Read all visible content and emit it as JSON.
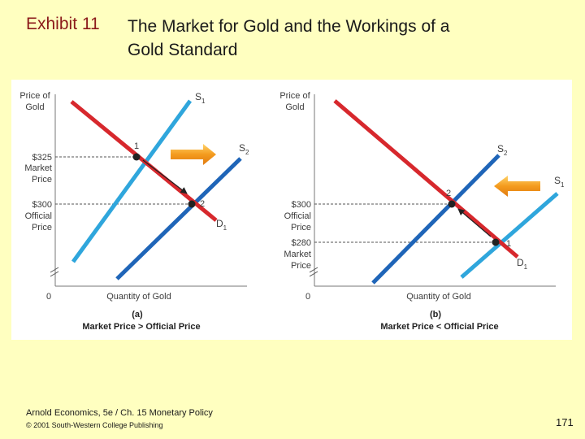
{
  "slide": {
    "exhibit_label": "Exhibit 11",
    "title": "The Market for Gold and the Workings of a Gold Standard",
    "footer_source": "Arnold Economics, 5e / Ch. 15 Monetary Policy",
    "footer_copyright": "© 2001 South-Western College Publishing",
    "page_number": "171"
  },
  "colors": {
    "demand": "#d7282d",
    "supply_light": "#2fa6dc",
    "supply_dark": "#1f65b8",
    "arrow_fill": "#f49b1e",
    "point": "#222222",
    "axis_text": "#3c3c3c"
  },
  "panels": [
    {
      "y_axis_label": [
        "Price of",
        "Gold"
      ],
      "x_axis_label": "Quantity of Gold",
      "origin": "0",
      "panel_letter": "(a)",
      "caption": "Market Price > Official Price",
      "s1": "S",
      "s1_sub": "1",
      "s2": "S",
      "s2_sub": "2",
      "d1": "D",
      "d1_sub": "1",
      "upper_price": [
        "$325",
        "Market",
        "Price"
      ],
      "lower_price": [
        "$300",
        "Official",
        "Price"
      ],
      "point1": "1",
      "point2": "2",
      "shift_arrow_icon": "arrow-right-icon"
    },
    {
      "y_axis_label": [
        "Price of",
        "Gold"
      ],
      "x_axis_label": "Quantity of Gold",
      "origin": "0",
      "panel_letter": "(b)",
      "caption": "Market Price < Official Price",
      "s1": "S",
      "s1_sub": "1",
      "s2": "S",
      "s2_sub": "2",
      "d1": "D",
      "d1_sub": "1",
      "upper_price": [
        "$300",
        "Official",
        "Price"
      ],
      "lower_price": [
        "$280",
        "Market",
        "Price"
      ],
      "point1": "1",
      "point2": "2",
      "shift_arrow_icon": "arrow-left-icon"
    }
  ]
}
